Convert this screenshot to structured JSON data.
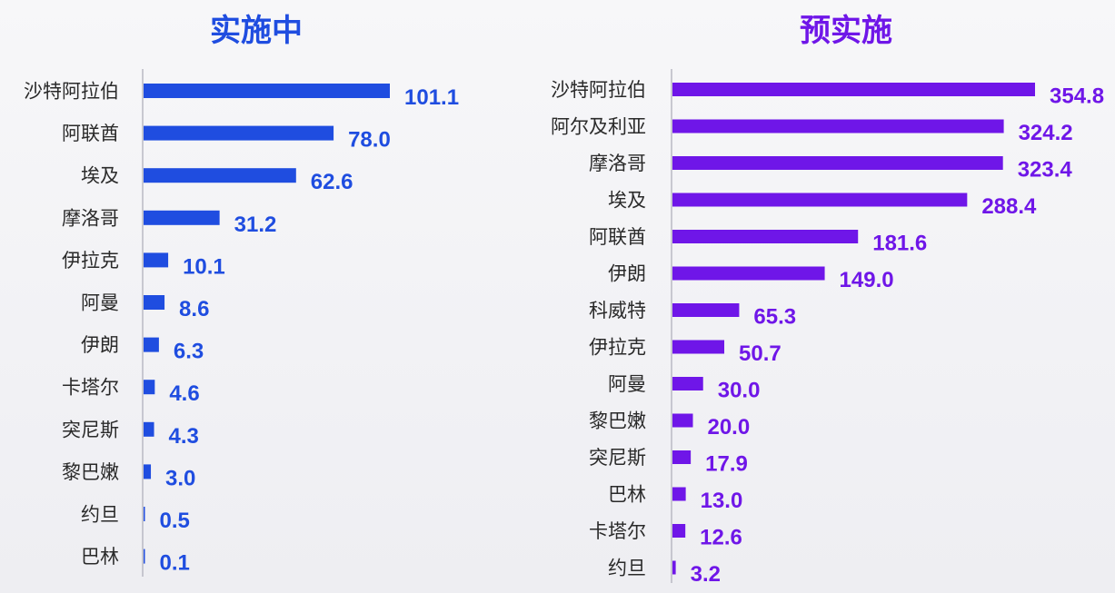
{
  "chart_data": [
    {
      "type": "bar",
      "orientation": "horizontal",
      "title": "实施中",
      "color": "#1f4de0",
      "categories": [
        "沙特阿拉伯",
        "阿联酋",
        "埃及",
        "摩洛哥",
        "伊拉克",
        "阿曼",
        "伊朗",
        "卡塔尔",
        "突尼斯",
        "黎巴嫩",
        "约旦",
        "巴林"
      ],
      "values": [
        101.1,
        78.0,
        62.6,
        31.2,
        10.1,
        8.6,
        6.3,
        4.6,
        4.3,
        3.0,
        0.5,
        0.1
      ],
      "value_labels": [
        "101.1",
        "78.0",
        "62.6",
        "31.2",
        "10.1",
        "8.6",
        "6.3",
        "4.6",
        "4.3",
        "3.0",
        "0.5",
        "0.1"
      ],
      "xlim": [
        0,
        101.1
      ]
    },
    {
      "type": "bar",
      "orientation": "horizontal",
      "title": "预实施",
      "color": "#6f16e8",
      "categories": [
        "沙特阿拉伯",
        "阿尔及利亚",
        "摩洛哥",
        "埃及",
        "阿联酋",
        "伊朗",
        "科威特",
        "伊拉克",
        "阿曼",
        "黎巴嫩",
        "突尼斯",
        "巴林",
        "卡塔尔",
        "约旦"
      ],
      "values": [
        354.8,
        324.2,
        323.4,
        288.4,
        181.6,
        149.0,
        65.3,
        50.7,
        30.0,
        20.0,
        17.9,
        13.0,
        12.6,
        3.2
      ],
      "value_labels": [
        "354.8",
        "324.2",
        "323.4",
        "288.4",
        "181.6",
        "149.0",
        "65.3",
        "50.7",
        "30.0",
        "20.0",
        "17.9",
        "13.0",
        "12.6",
        "3.2"
      ],
      "xlim": [
        0,
        354.8
      ]
    }
  ]
}
